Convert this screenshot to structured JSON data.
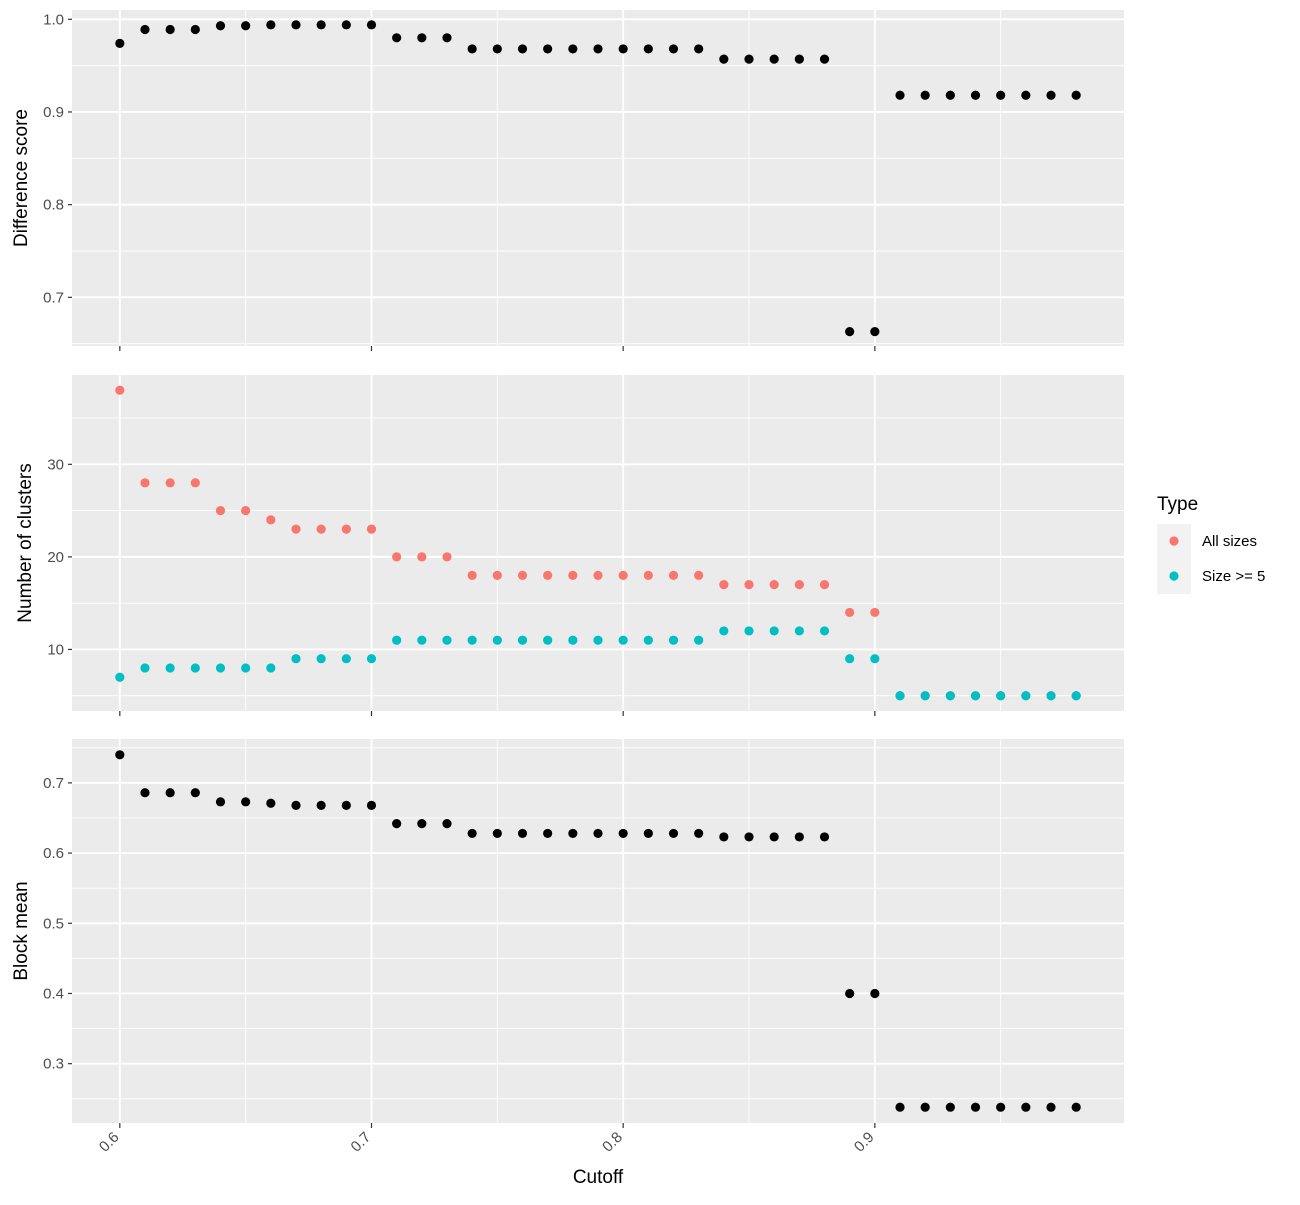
{
  "chart_data": {
    "type": "scatter",
    "xlabel": "Cutoff",
    "xlim": [
      0.581,
      0.999
    ],
    "x_ticks": [
      0.6,
      0.7,
      0.8,
      0.9
    ],
    "x_tick_labels": [
      "0.6",
      "0.7",
      "0.8",
      "0.9"
    ],
    "x": [
      0.6,
      0.61,
      0.62,
      0.63,
      0.64,
      0.65,
      0.66,
      0.67,
      0.68,
      0.69,
      0.7,
      0.71,
      0.72,
      0.73,
      0.74,
      0.75,
      0.76,
      0.77,
      0.78,
      0.79,
      0.8,
      0.81,
      0.82,
      0.83,
      0.84,
      0.85,
      0.86,
      0.87,
      0.88,
      0.89,
      0.9,
      0.91,
      0.92,
      0.93,
      0.94,
      0.95,
      0.96,
      0.97,
      0.98
    ],
    "panels": [
      {
        "ylabel": "Difference score",
        "ylim": [
          0.6475,
          1.01
        ],
        "y_ticks": [
          0.7,
          0.8,
          0.9,
          1.0
        ],
        "y_tick_labels": [
          "0.7",
          "0.8",
          "0.9",
          "1.0"
        ],
        "series": [
          {
            "color": "#000000",
            "values": [
              0.974,
              0.989,
              0.989,
              0.989,
              0.993,
              0.993,
              0.994,
              0.994,
              0.994,
              0.994,
              0.994,
              0.98,
              0.98,
              0.98,
              0.968,
              0.968,
              0.968,
              0.968,
              0.968,
              0.968,
              0.968,
              0.968,
              0.968,
              0.968,
              0.957,
              0.957,
              0.957,
              0.957,
              0.957,
              0.663,
              0.663,
              0.918,
              0.918,
              0.918,
              0.918,
              0.918,
              0.918,
              0.918,
              0.918
            ]
          }
        ]
      },
      {
        "ylabel": "Number of clusters",
        "ylim": [
          3.35,
          39.65
        ],
        "y_ticks": [
          10,
          20,
          30
        ],
        "y_tick_labels": [
          "10",
          "20",
          "30"
        ],
        "series": [
          {
            "name": "All sizes",
            "color": "#F8766D",
            "values": [
              38,
              28,
              28,
              28,
              25,
              25,
              24,
              23,
              23,
              23,
              23,
              20,
              20,
              20,
              18,
              18,
              18,
              18,
              18,
              18,
              18,
              18,
              18,
              18,
              17,
              17,
              17,
              17,
              17,
              14,
              14,
              5,
              5,
              5,
              5,
              5,
              5,
              5,
              5
            ]
          },
          {
            "name": "Size >= 5",
            "color": "#00BFC4",
            "values": [
              7,
              8,
              8,
              8,
              8,
              8,
              8,
              9,
              9,
              9,
              9,
              11,
              11,
              11,
              11,
              11,
              11,
              11,
              11,
              11,
              11,
              11,
              11,
              11,
              12,
              12,
              12,
              12,
              12,
              9,
              9,
              5,
              5,
              5,
              5,
              5,
              5,
              5,
              5
            ]
          }
        ]
      },
      {
        "ylabel": "Block mean",
        "ylim": [
          0.2155,
          0.7625
        ],
        "y_ticks": [
          0.3,
          0.4,
          0.5,
          0.6,
          0.7
        ],
        "y_tick_labels": [
          "0.3",
          "0.4",
          "0.5",
          "0.6",
          "0.7"
        ],
        "series": [
          {
            "color": "#000000",
            "values": [
              0.74,
              0.686,
              0.686,
              0.686,
              0.673,
              0.673,
              0.671,
              0.668,
              0.668,
              0.668,
              0.668,
              0.642,
              0.642,
              0.642,
              0.628,
              0.628,
              0.628,
              0.628,
              0.628,
              0.628,
              0.628,
              0.628,
              0.628,
              0.628,
              0.623,
              0.623,
              0.623,
              0.623,
              0.623,
              0.4,
              0.4,
              0.238,
              0.238,
              0.238,
              0.238,
              0.238,
              0.238,
              0.238,
              0.238
            ]
          }
        ]
      }
    ],
    "legend": {
      "title": "Type",
      "position": "right",
      "items": [
        {
          "label": "All sizes",
          "color": "#F8766D"
        },
        {
          "label": "Size >= 5",
          "color": "#00BFC4"
        }
      ]
    },
    "grid": true,
    "theme": {
      "panel_background": "#EBEBEB",
      "grid_color": "#FFFFFF",
      "tick_color": "#333333"
    }
  }
}
